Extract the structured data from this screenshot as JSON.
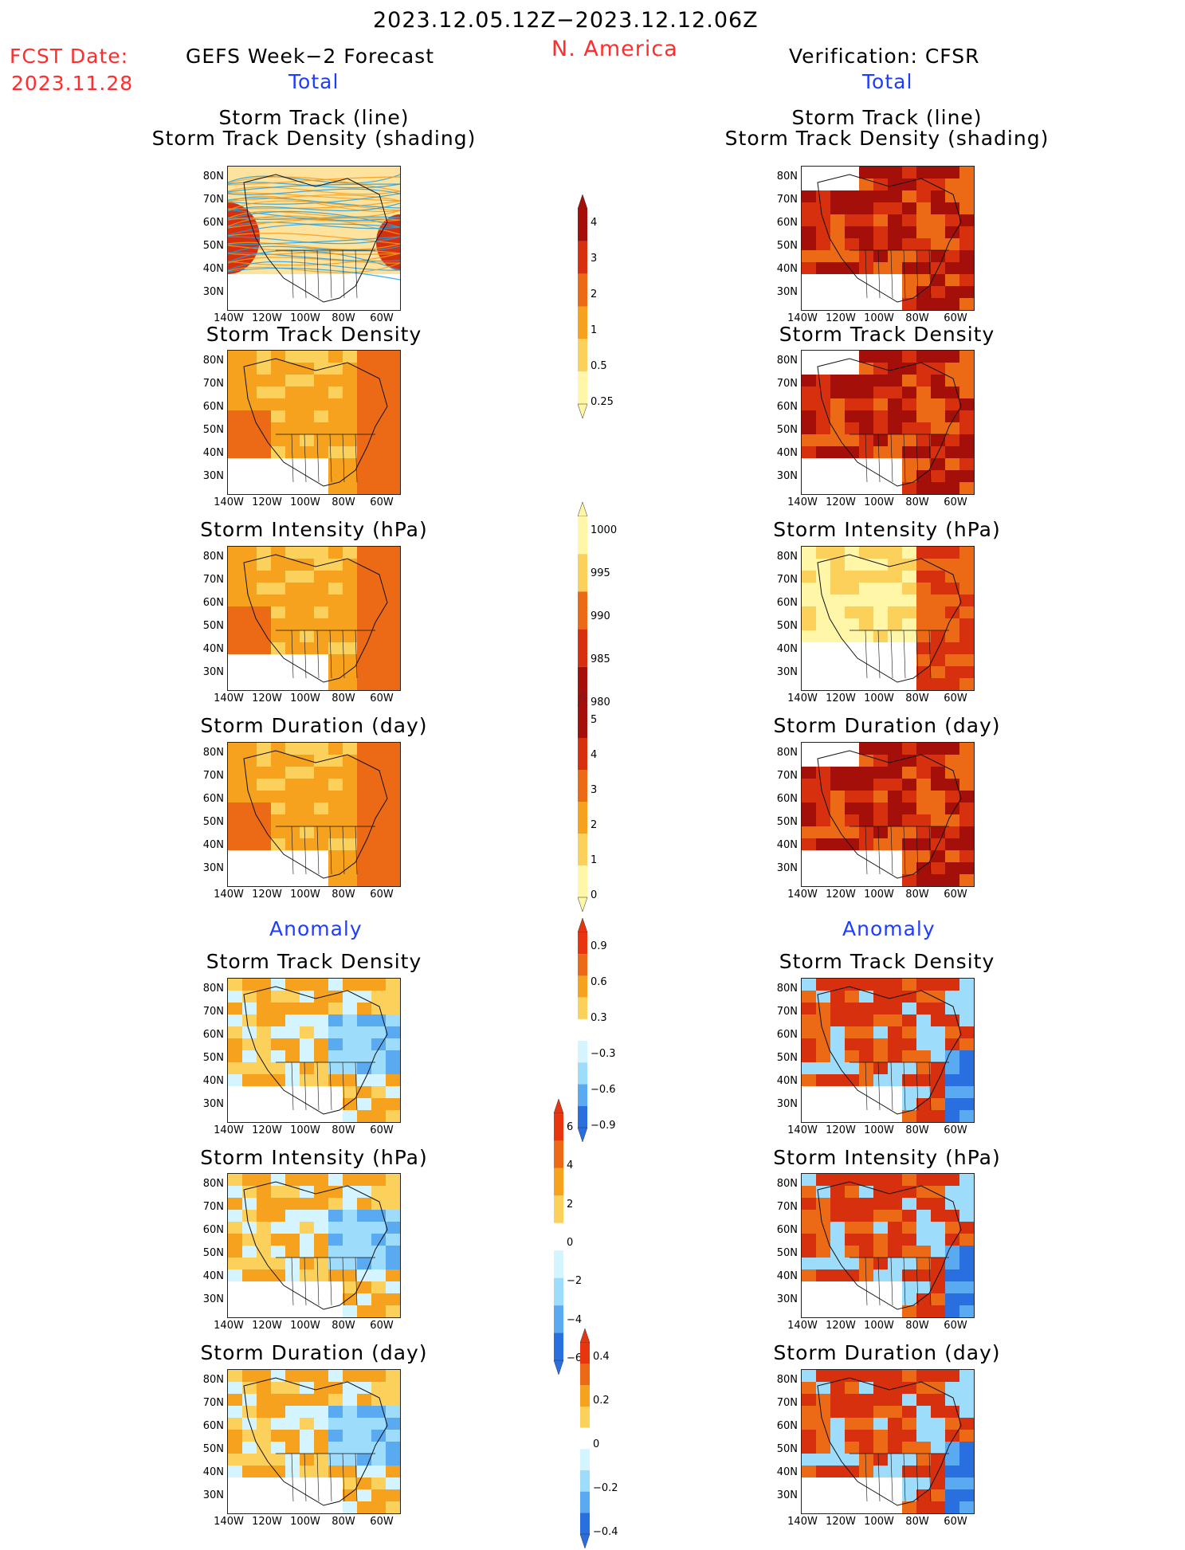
{
  "header": {
    "date_range": "2023.12.05.12Z−2023.12.12.06Z",
    "region": "N. America",
    "fcst_label": "FCST Date:",
    "fcst_date": "2023.11.28",
    "left_title": "GEFS Week−2 Forecast",
    "right_title": "Verification: CFSR"
  },
  "sections": {
    "total": "Total",
    "anomaly": "Anomaly"
  },
  "panel_titles": {
    "track_line": "Storm Track (line)",
    "track_shading": "Storm Track Density (shading)",
    "density": "Storm Track Density",
    "intensity": "Storm Intensity (hPa)",
    "duration": "Storm Duration (day)"
  },
  "axes": {
    "lats": [
      "80N",
      "70N",
      "60N",
      "50N",
      "40N",
      "30N"
    ],
    "lons": [
      "140W",
      "120W",
      "100W",
      "80W",
      "60W"
    ]
  },
  "colorbars": [
    {
      "id": "density",
      "labels": [
        "4",
        "3",
        "2",
        "1",
        "0.5",
        "0.25"
      ]
    },
    {
      "id": "intensity",
      "labels": [
        "1000",
        "995",
        "990",
        "985",
        "980"
      ]
    },
    {
      "id": "duration",
      "labels": [
        "5",
        "4",
        "3",
        "2",
        "1",
        "0"
      ]
    },
    {
      "id": "anom_density",
      "labels": [
        "0.9",
        "0.6",
        "0.3",
        "−0.3",
        "−0.6",
        "−0.9"
      ]
    },
    {
      "id": "anom_intensity",
      "labels": [
        "6",
        "4",
        "2",
        "0",
        "−2",
        "−4",
        "−6"
      ]
    },
    {
      "id": "anom_duration",
      "labels": [
        "0.4",
        "0.2",
        "0",
        "−0.2",
        "−0.4"
      ]
    }
  ],
  "colors": {
    "warm_scale": [
      "#fff6a8",
      "#fbd15c",
      "#f7a21f",
      "#ec6a16",
      "#d6300f",
      "#a50f0a"
    ],
    "cool_scale": [
      "#d4f4ff",
      "#9edcfb",
      "#5aaaf2",
      "#2a6fe0"
    ],
    "track_lines": [
      "#1fa0e8",
      "#f59a1a"
    ],
    "red_text": "#ff2d2d",
    "blue_text": "#1f3dff"
  }
}
